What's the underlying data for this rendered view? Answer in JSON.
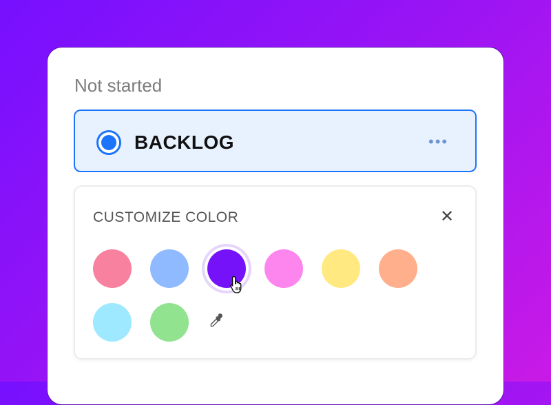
{
  "status_group": "Not started",
  "status": {
    "label": "BACKLOG",
    "color": "#1c74fb",
    "more_icon": "ellipsis-icon"
  },
  "customize": {
    "title": "CUSTOMIZE COLOR",
    "close_icon": "close-icon",
    "swatches": [
      {
        "color": "#f7819f",
        "selected": false
      },
      {
        "color": "#8fbaff",
        "selected": false
      },
      {
        "color": "#7612fa",
        "selected": true
      },
      {
        "color": "#fd85ee",
        "selected": false
      },
      {
        "color": "#ffe980",
        "selected": false
      },
      {
        "color": "#ffaf8b",
        "selected": false
      },
      {
        "color": "#9ee9ff",
        "selected": false
      },
      {
        "color": "#91e390",
        "selected": false
      }
    ],
    "picker_icon": "eyedropper-icon"
  }
}
